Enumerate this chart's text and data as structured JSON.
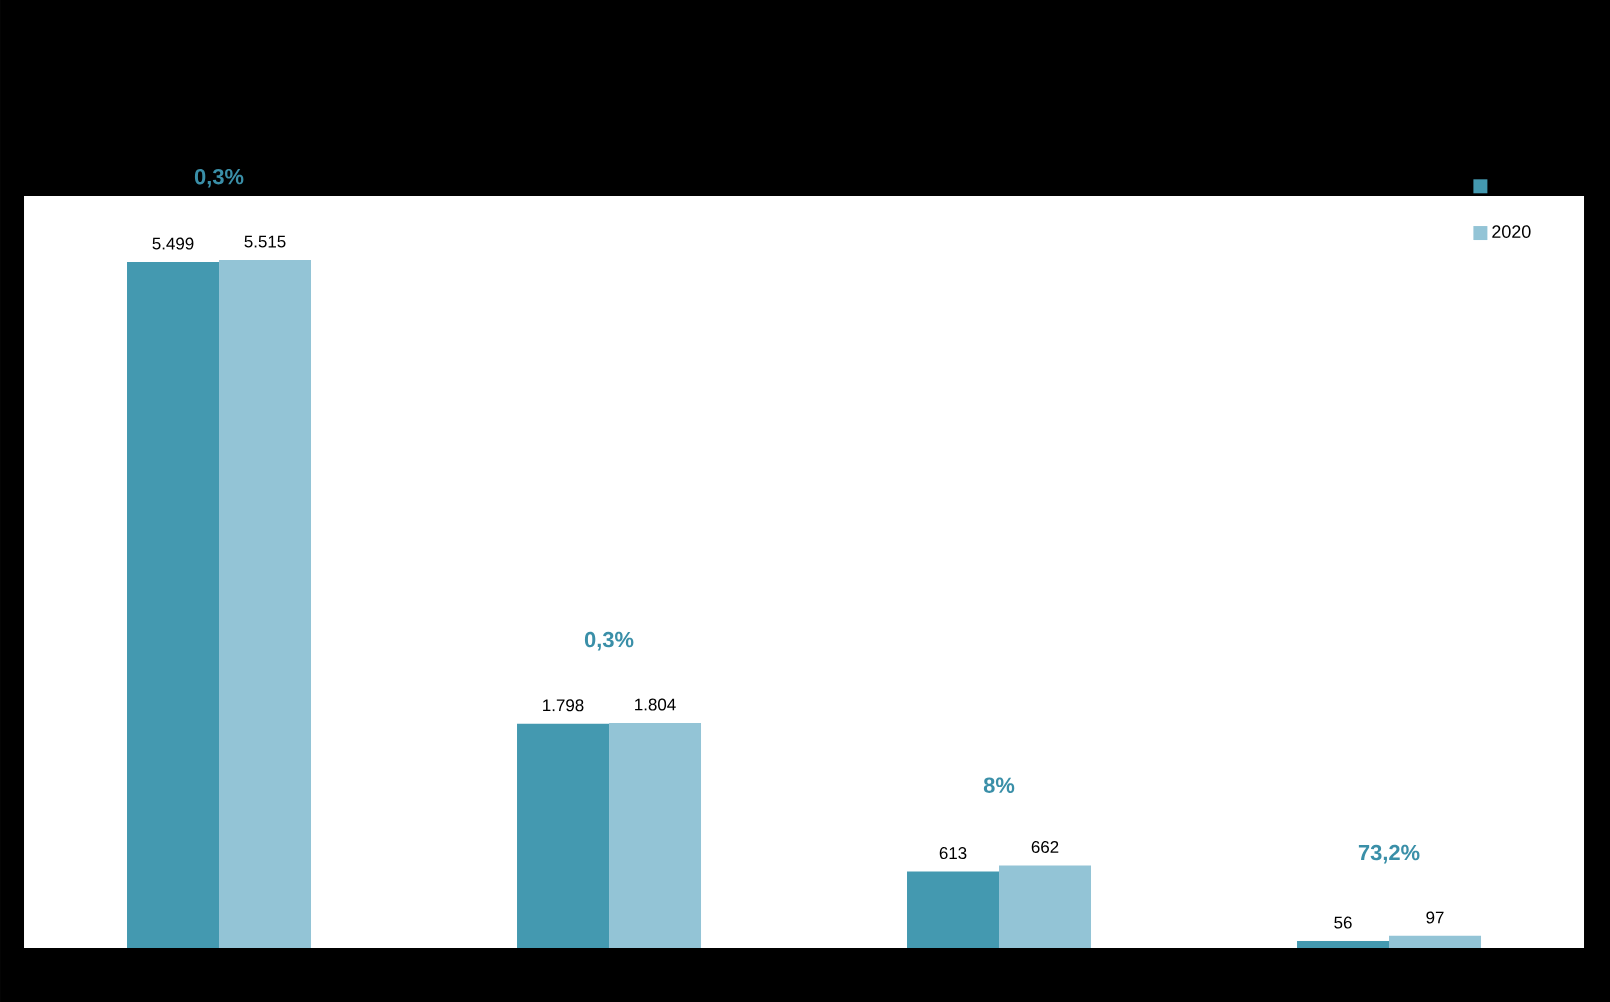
{
  "chart_data": {
    "type": "bar",
    "categories": [
      null,
      null,
      null,
      null
    ],
    "series": [
      {
        "color": "#4499b0",
        "values": [
          5499,
          1798,
          613,
          56
        ],
        "value_labels": [
          "5.499",
          "1.798",
          "613",
          "56"
        ]
      },
      {
        "name": "2020",
        "color": "#93c4d6",
        "values": [
          5515,
          1804,
          662,
          97
        ],
        "value_labels": [
          "5.515",
          "1.804",
          "662",
          "97"
        ]
      }
    ],
    "annotations": [
      "0,3%",
      "0,3%",
      "8%",
      "73,2%"
    ],
    "legend": "top right"
  }
}
